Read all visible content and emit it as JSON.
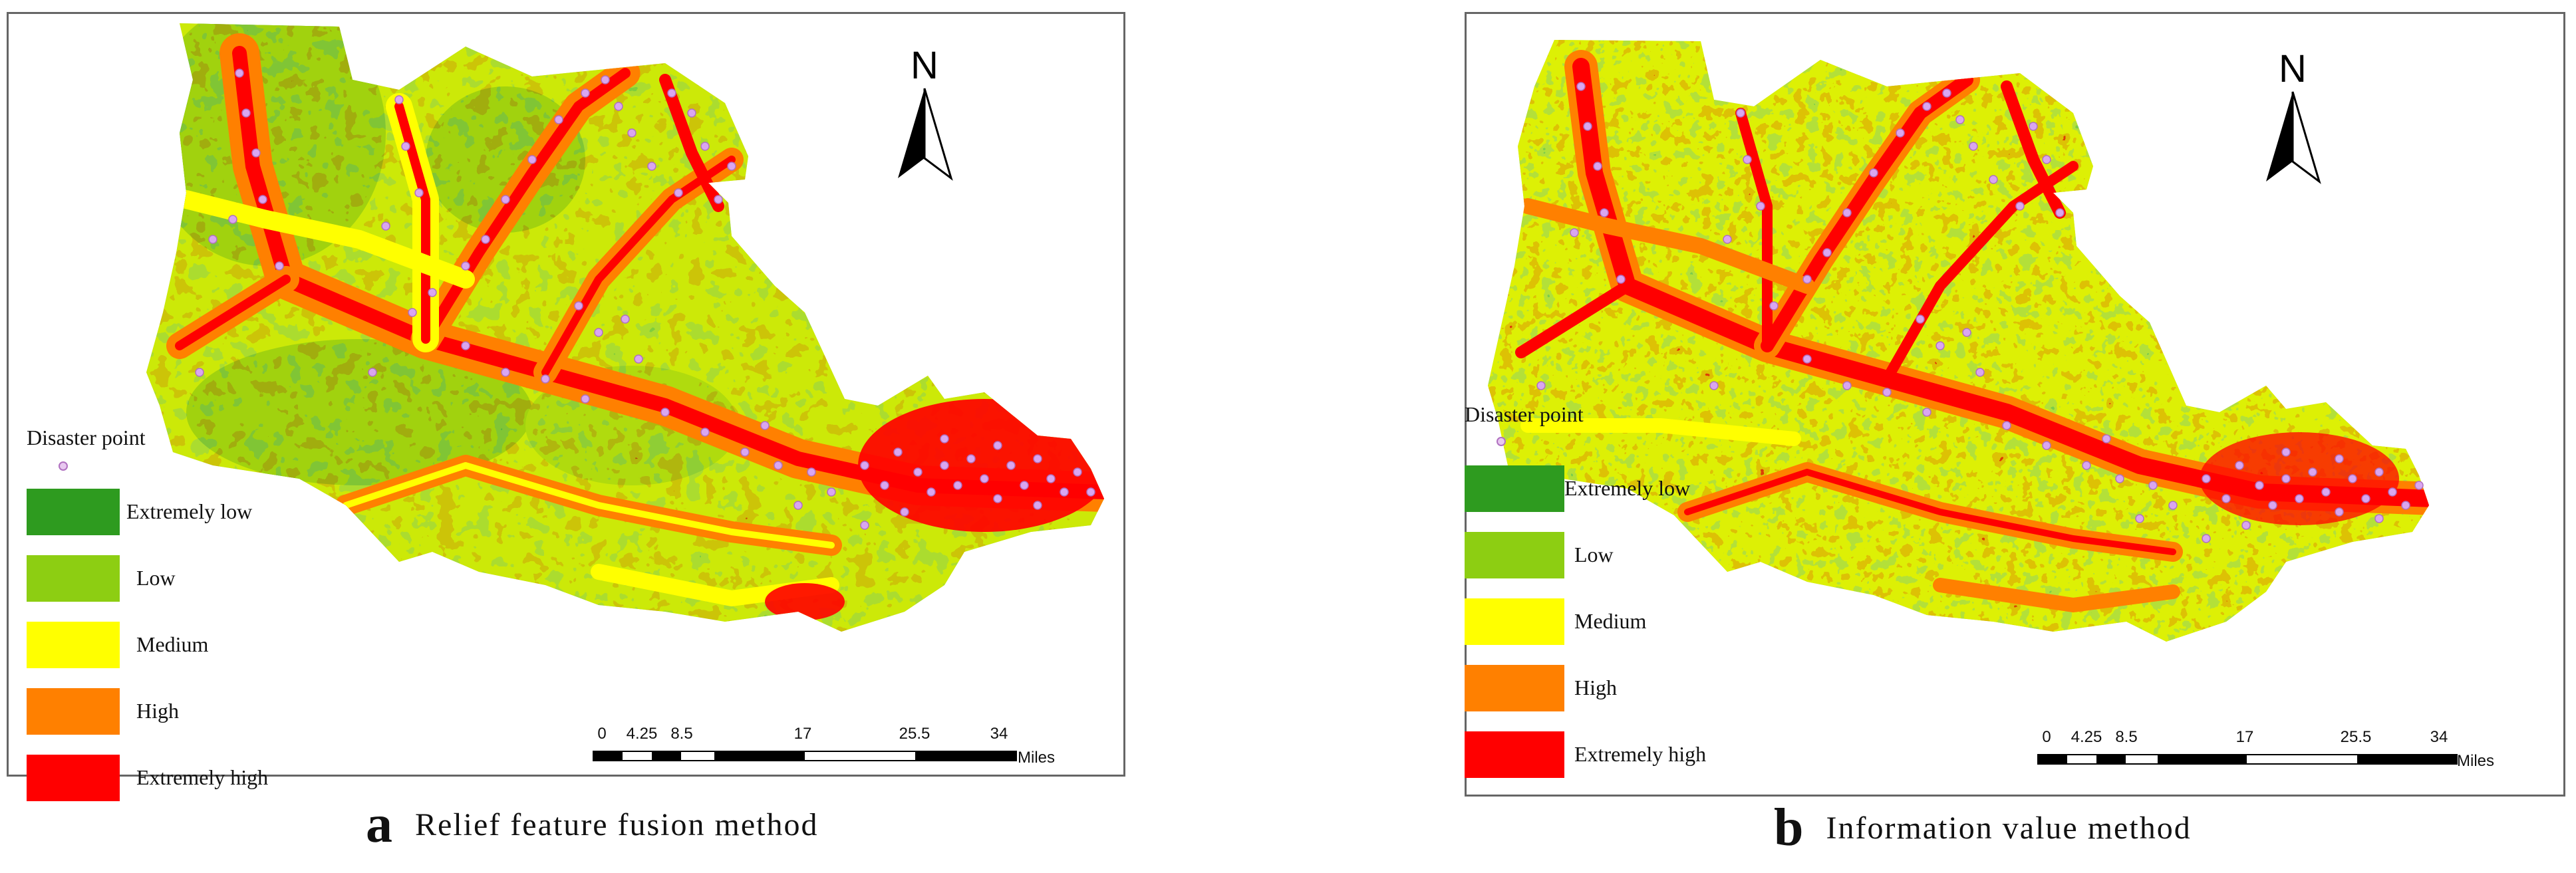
{
  "compass_label": "N",
  "legend": {
    "point_label": "Disaster point",
    "classes": [
      {
        "label": "Extremely low",
        "color": "#2e9b1f"
      },
      {
        "label": "Low",
        "color": "#8dce12"
      },
      {
        "label": "Medium",
        "color": "#ffff00"
      },
      {
        "label": "High",
        "color": "#ff8000"
      },
      {
        "label": "Extremely high",
        "color": "#ff0000"
      }
    ]
  },
  "scale": {
    "ticks": [
      "0",
      "4.25",
      "8.5",
      "17",
      "25.5",
      "34"
    ],
    "units": "Miles"
  },
  "panels": [
    {
      "letter": "a",
      "title": "Relief feature fusion method"
    },
    {
      "letter": "b",
      "title": "Information value method"
    }
  ],
  "colors": {
    "disaster_point": "#d9a6f0",
    "frame": "#666666"
  }
}
